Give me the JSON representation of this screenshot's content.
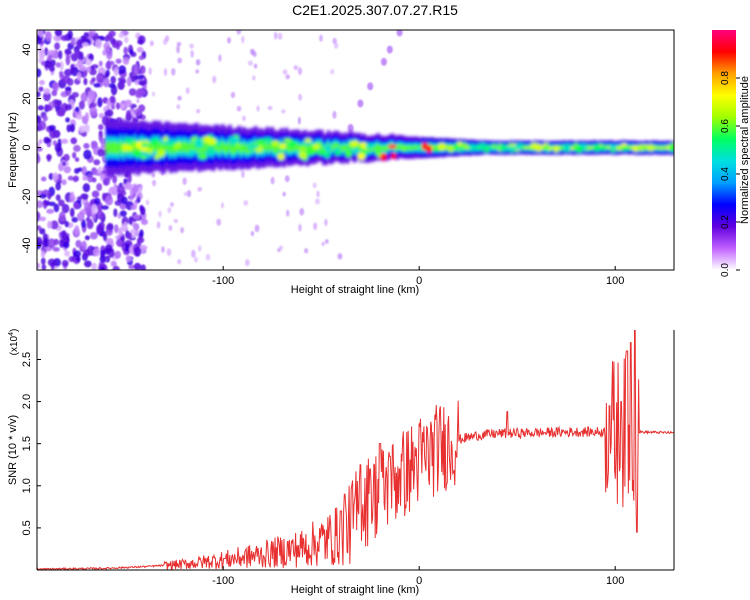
{
  "title": "C2E1.2025.307.07.27.R15",
  "chart_data": [
    {
      "type": "heatmap",
      "xlabel": "Height of straight line (km)",
      "ylabel": "Frequency (Hz)",
      "xlim": [
        -195,
        130
      ],
      "ylim": [
        -50,
        48
      ],
      "xticks": [
        -100,
        0,
        100
      ],
      "yticks": [
        -40,
        -20,
        0,
        20,
        40
      ],
      "colorbar": {
        "label": "Normalized spectral amplitude",
        "range": [
          0,
          1
        ],
        "ticks": [
          "0.0",
          "0.2",
          "0.4",
          "0.6",
          "0.8"
        ],
        "colors": [
          "#ffffff",
          "#c060ff",
          "#6000e0",
          "#0000ff",
          "#00a0ff",
          "#00e0e0",
          "#00ff60",
          "#a0ff00",
          "#ffff00",
          "#ffa000",
          "#ff0000",
          "#ff0080"
        ]
      },
      "ridge": {
        "description_values": "dominant energy band centered near 0 Hz from about -160 km to 130 km",
        "center_hz": 0,
        "x_start": -160,
        "x_end": 130,
        "half_width_hz": [
          8,
          2
        ]
      },
      "noise_region": {
        "x_start": -195,
        "x_end": -150,
        "freq_range": [
          -50,
          48
        ]
      },
      "branch_points": [
        [
          -35,
          8
        ],
        [
          -30,
          18
        ],
        [
          -25,
          25
        ],
        [
          -18,
          35
        ],
        [
          -15,
          40
        ],
        [
          -10,
          47
        ]
      ]
    },
    {
      "type": "line",
      "xlabel": "Height of straight line (km)",
      "ylabel": "SNR (10 * v/v)",
      "y_scale_label": "(x10",
      "y_scale_exp": "4",
      "y_scale_close": ")",
      "xlim": [
        -195,
        130
      ],
      "ylim": [
        0,
        2.85
      ],
      "xticks": [
        -100,
        0,
        100
      ],
      "yticks": [
        "0.5",
        "1.0",
        "1.5",
        "2.0",
        "2.5"
      ],
      "series": [
        {
          "name": "SNR",
          "color": "#e83030",
          "envelope": [
            [
              -195,
              0.01
            ],
            [
              -160,
              0.02
            ],
            [
              -140,
              0.04
            ],
            [
              -120,
              0.07
            ],
            [
              -100,
              0.12
            ],
            [
              -80,
              0.18
            ],
            [
              -60,
              0.26
            ],
            [
              -40,
              0.42
            ],
            [
              -35,
              0.55
            ],
            [
              -30,
              0.75
            ],
            [
              -20,
              0.95
            ],
            [
              -10,
              1.1
            ],
            [
              0,
              1.3
            ],
            [
              10,
              1.45
            ],
            [
              20,
              1.55
            ],
            [
              30,
              1.6
            ],
            [
              40,
              1.62
            ],
            [
              60,
              1.63
            ],
            [
              80,
              1.64
            ],
            [
              100,
              1.64
            ],
            [
              110,
              1.64
            ],
            [
              130,
              1.63
            ]
          ],
          "bursts": [
            [
              -40,
              0.7
            ],
            [
              -38,
              0.9
            ],
            [
              -30,
              1.25
            ],
            [
              -25,
              1.2
            ],
            [
              -20,
              1.5
            ],
            [
              -15,
              1.35
            ],
            [
              -10,
              1.2
            ],
            [
              45,
              1.88
            ],
            [
              97,
              1.95
            ],
            [
              103,
              2.0
            ],
            [
              106,
              2.6
            ],
            [
              108,
              2.7
            ],
            [
              110,
              2.85
            ],
            [
              111,
              0.45
            ]
          ]
        }
      ]
    }
  ]
}
